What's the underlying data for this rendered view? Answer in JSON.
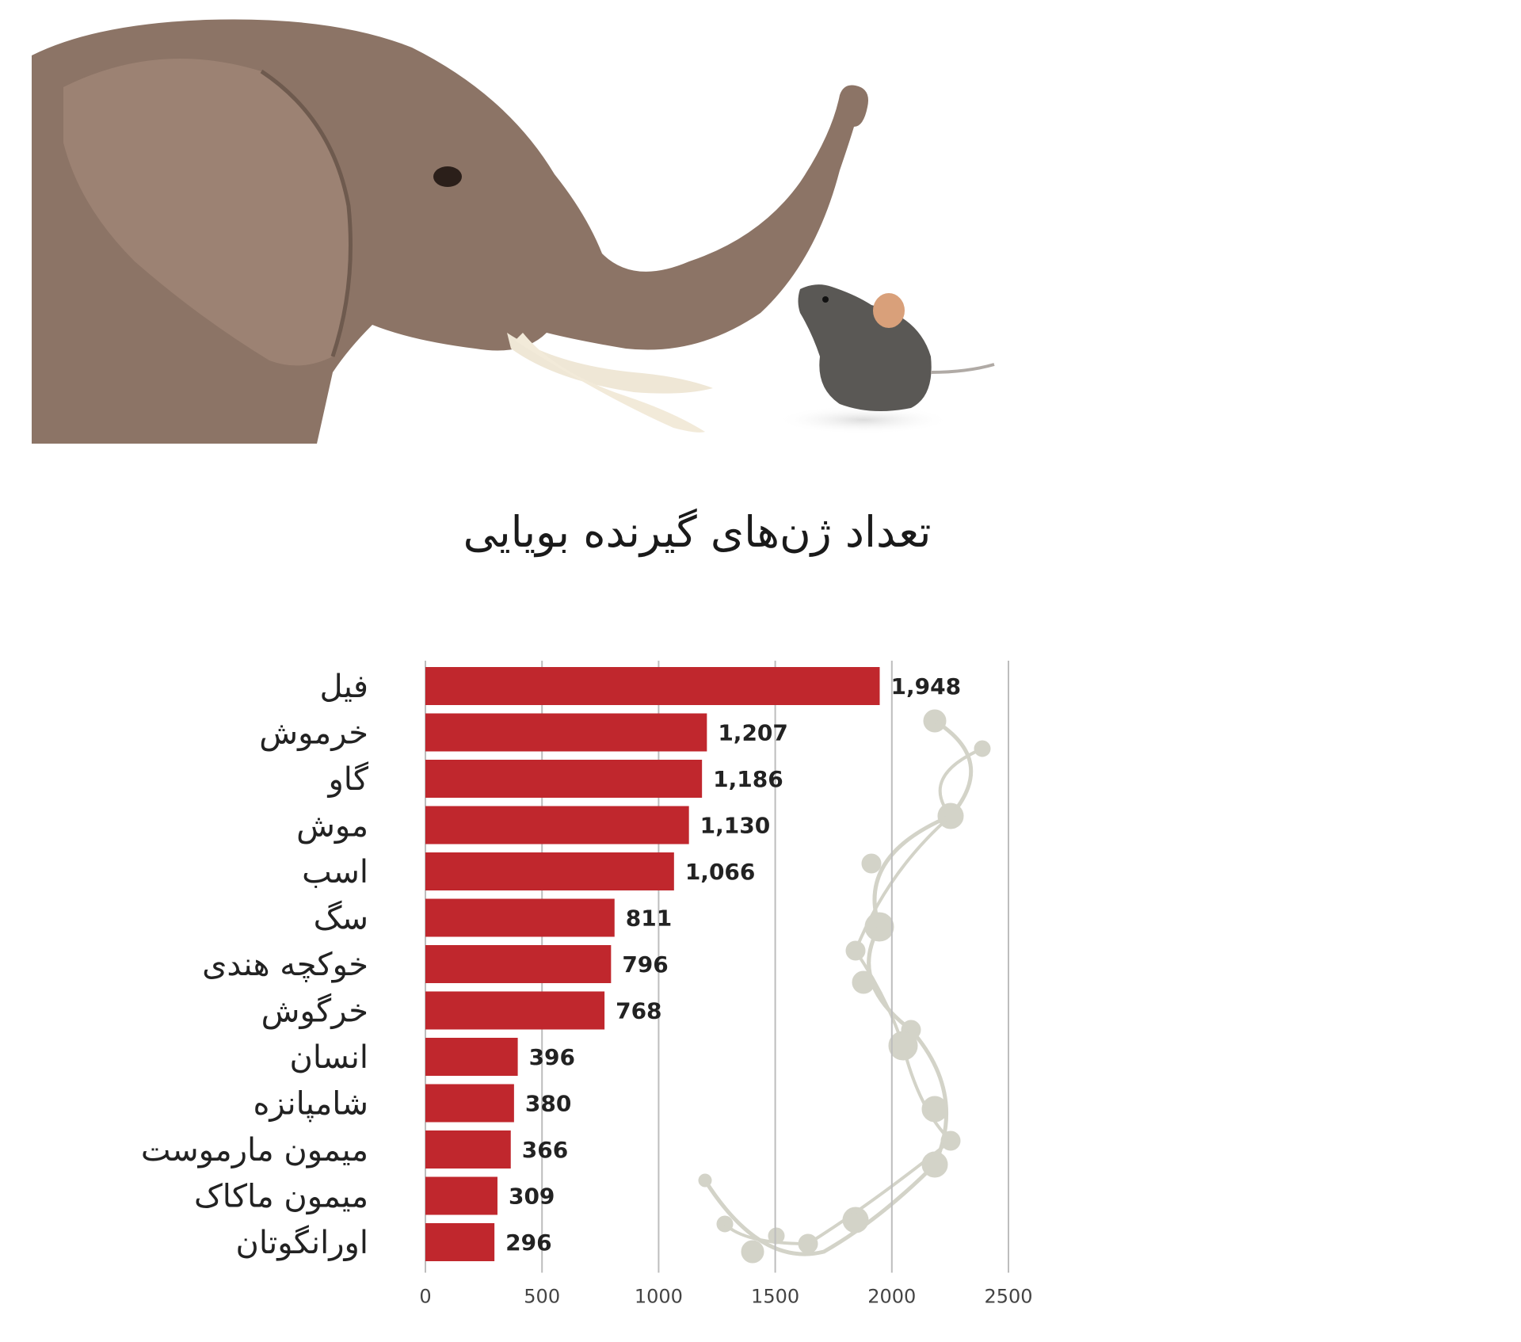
{
  "chart_data": {
    "type": "bar",
    "orientation": "horizontal",
    "title": "تعداد ژن‌های گیرنده بویایی",
    "categories": [
      "فیل",
      "خرموش",
      "گاو",
      "موش",
      "اسب",
      "سگ",
      "خوکچه هندی",
      "خرگوش",
      "انسان",
      "شامپانزه",
      "میمون مارموست",
      "میمون ماکاک",
      "اورانگوتان"
    ],
    "values": [
      1948,
      1207,
      1186,
      1130,
      1066,
      811,
      796,
      768,
      396,
      380,
      366,
      309,
      296
    ],
    "value_labels": [
      "1,948",
      "1,207",
      "1,186",
      "1,130",
      "1,066",
      "811",
      "796",
      "768",
      "396",
      "380",
      "366",
      "309",
      "296"
    ],
    "xlim": [
      0,
      2500
    ],
    "xticks": [
      0,
      500,
      1000,
      1500,
      2000,
      2500
    ],
    "xtick_labels": [
      "0",
      "500",
      "1000",
      "1500",
      "2000",
      "2500"
    ],
    "grid": true,
    "bar_color": "#c0272d",
    "grid_color": "#bdbdbd"
  }
}
